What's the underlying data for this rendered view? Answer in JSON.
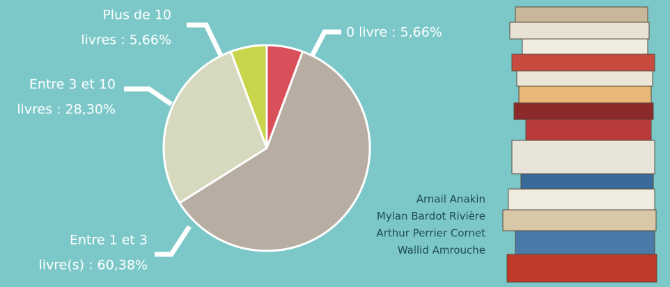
{
  "chart_data": {
    "type": "pie",
    "labels": [
      [
        "0 livre : 5,66%"
      ],
      [
        "Entre 1 et 3",
        "livre(s) : 60,38%"
      ],
      [
        "Entre 3 et 10",
        "livres : 28,30%"
      ],
      [
        "Plus de 10",
        "livres : 5,66%"
      ]
    ],
    "values": [
      5.66,
      60.38,
      28.3,
      5.66
    ],
    "colors": [
      "#d9505a",
      "#b8ada3",
      "#d7d9be",
      "#c8d44b"
    ],
    "credits": [
      "Arnail Anakin",
      "Mylan Bardot Rivière",
      "Arthur Perrier Cornet",
      "Wallid Amrouche"
    ]
  }
}
